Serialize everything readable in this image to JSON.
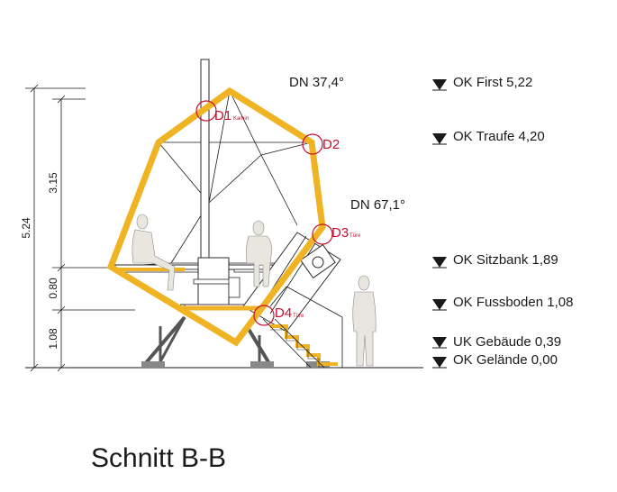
{
  "title": "Schnitt B-B",
  "roof_pitches": {
    "upper": "DN 37,4°",
    "lower": "DN 67,1°"
  },
  "levels": [
    {
      "label": "OK First 5,22"
    },
    {
      "label": "OK Traufe 4,20"
    },
    {
      "label": "OK Sitzbank 1,89"
    },
    {
      "label": "OK Fussboden 1,08"
    },
    {
      "label": "UK Gebäude 0,39"
    },
    {
      "label": "OK Gelände 0,00"
    }
  ],
  "dimensions": {
    "total": "5.24",
    "upper": "3.15",
    "middle": "0.80",
    "lower": "1.08"
  },
  "details": [
    {
      "id": "D1",
      "sub": "Kamin"
    },
    {
      "id": "D2",
      "sub": ""
    },
    {
      "id": "D3",
      "sub": "Türe"
    },
    {
      "id": "D4",
      "sub": "Türe"
    }
  ],
  "colors": {
    "envelope": "#f0b323",
    "detail_marker": "#c8102e",
    "figure": "#e9e6df",
    "lines": "#1a1a1a"
  }
}
